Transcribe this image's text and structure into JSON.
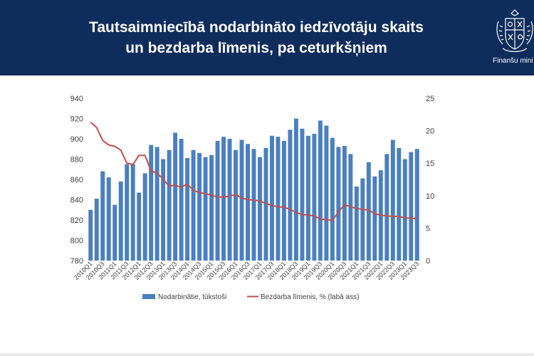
{
  "header": {
    "title_line1": "Tautsaimniecībā nodarbināto iedzīvotāju skaits",
    "title_line2": "un bezdarba līmenis, pa ceturkšņiem",
    "org_name": "Finanšu mini",
    "logo_icon": "coat-of-arms-icon",
    "colors": {
      "banner": "#0f2d5c",
      "text": "#ffffff"
    }
  },
  "chart_data": {
    "type": "bar",
    "title": "",
    "xlabel": "",
    "ylabel": "",
    "y_left_lim": [
      780,
      940
    ],
    "y_left_ticks": [
      780,
      800,
      820,
      840,
      860,
      880,
      900,
      920,
      940
    ],
    "y_right_lim": [
      0,
      25
    ],
    "y_right_ticks": [
      0,
      5,
      10,
      15,
      20,
      25
    ],
    "grid": false,
    "legend_position": "bottom",
    "x_tick_labels": [
      "2010Q1",
      "2010Q3",
      "2011Q1",
      "2011Q3",
      "2012Q1",
      "2012Q3",
      "2013Q1",
      "2013Q3",
      "2014Q1",
      "2014Q3",
      "2015Q1",
      "2015Q3",
      "2016Q1",
      "2016Q3",
      "2017Q1",
      "2017Q3",
      "2018Q1",
      "2018Q3",
      "2019Q1",
      "2019Q3",
      "2020Q1",
      "2020Q3",
      "2021Q1",
      "2021Q3",
      "2022Q1",
      "2022Q3",
      "2023Q1",
      "2023Q3"
    ],
    "categories": [
      "2010Q1",
      "2010Q2",
      "2010Q3",
      "2010Q4",
      "2011Q1",
      "2011Q2",
      "2011Q3",
      "2011Q4",
      "2012Q1",
      "2012Q2",
      "2012Q3",
      "2012Q4",
      "2013Q1",
      "2013Q2",
      "2013Q3",
      "2013Q4",
      "2014Q1",
      "2014Q2",
      "2014Q3",
      "2014Q4",
      "2015Q1",
      "2015Q2",
      "2015Q3",
      "2015Q4",
      "2016Q1",
      "2016Q2",
      "2016Q3",
      "2016Q4",
      "2017Q1",
      "2017Q2",
      "2017Q3",
      "2017Q4",
      "2018Q1",
      "2018Q2",
      "2018Q3",
      "2018Q4",
      "2019Q1",
      "2019Q2",
      "2019Q3",
      "2019Q4",
      "2020Q1",
      "2020Q2",
      "2020Q3",
      "2020Q4",
      "2021Q1",
      "2021Q2",
      "2021Q3",
      "2021Q4",
      "2022Q1",
      "2022Q2",
      "2022Q3",
      "2022Q4",
      "2023Q1",
      "2023Q2",
      "2023Q3"
    ],
    "series": [
      {
        "name": "Nodarbinātie, tūkstoši",
        "type": "bar",
        "axis": "left",
        "color": "#4a7fc1",
        "values": [
          830,
          841,
          868,
          862,
          835,
          858,
          875,
          875,
          847,
          866,
          894,
          892,
          880,
          889,
          906,
          900,
          881,
          889,
          886,
          882,
          884,
          898,
          902,
          900,
          889,
          899,
          895,
          890,
          882,
          891,
          903,
          902,
          898,
          909,
          920,
          910,
          903,
          905,
          918,
          913,
          901,
          892,
          893,
          885,
          853,
          861,
          877,
          863,
          869,
          885,
          899,
          891,
          880,
          887,
          890
        ]
      },
      {
        "name": "Bezdarba līmenis, % (labā ass)",
        "type": "line",
        "axis": "right",
        "color": "#c0504d",
        "values": [
          21.3,
          20.5,
          18.5,
          17.8,
          17.6,
          17.0,
          15.0,
          14.8,
          16.2,
          16.2,
          13.8,
          13.5,
          12.5,
          11.5,
          11.6,
          11.3,
          11.8,
          10.8,
          10.5,
          10.3,
          10.1,
          9.8,
          9.8,
          9.9,
          10.2,
          9.6,
          9.4,
          9.3,
          9.2,
          8.8,
          8.5,
          8.3,
          8.2,
          7.9,
          7.4,
          7.1,
          7.0,
          6.9,
          6.4,
          6.3,
          6.2,
          7.5,
          8.6,
          8.3,
          8.0,
          7.9,
          7.8,
          7.2,
          7.0,
          6.9,
          6.8,
          6.8,
          6.6,
          6.5,
          6.5
        ]
      }
    ]
  }
}
